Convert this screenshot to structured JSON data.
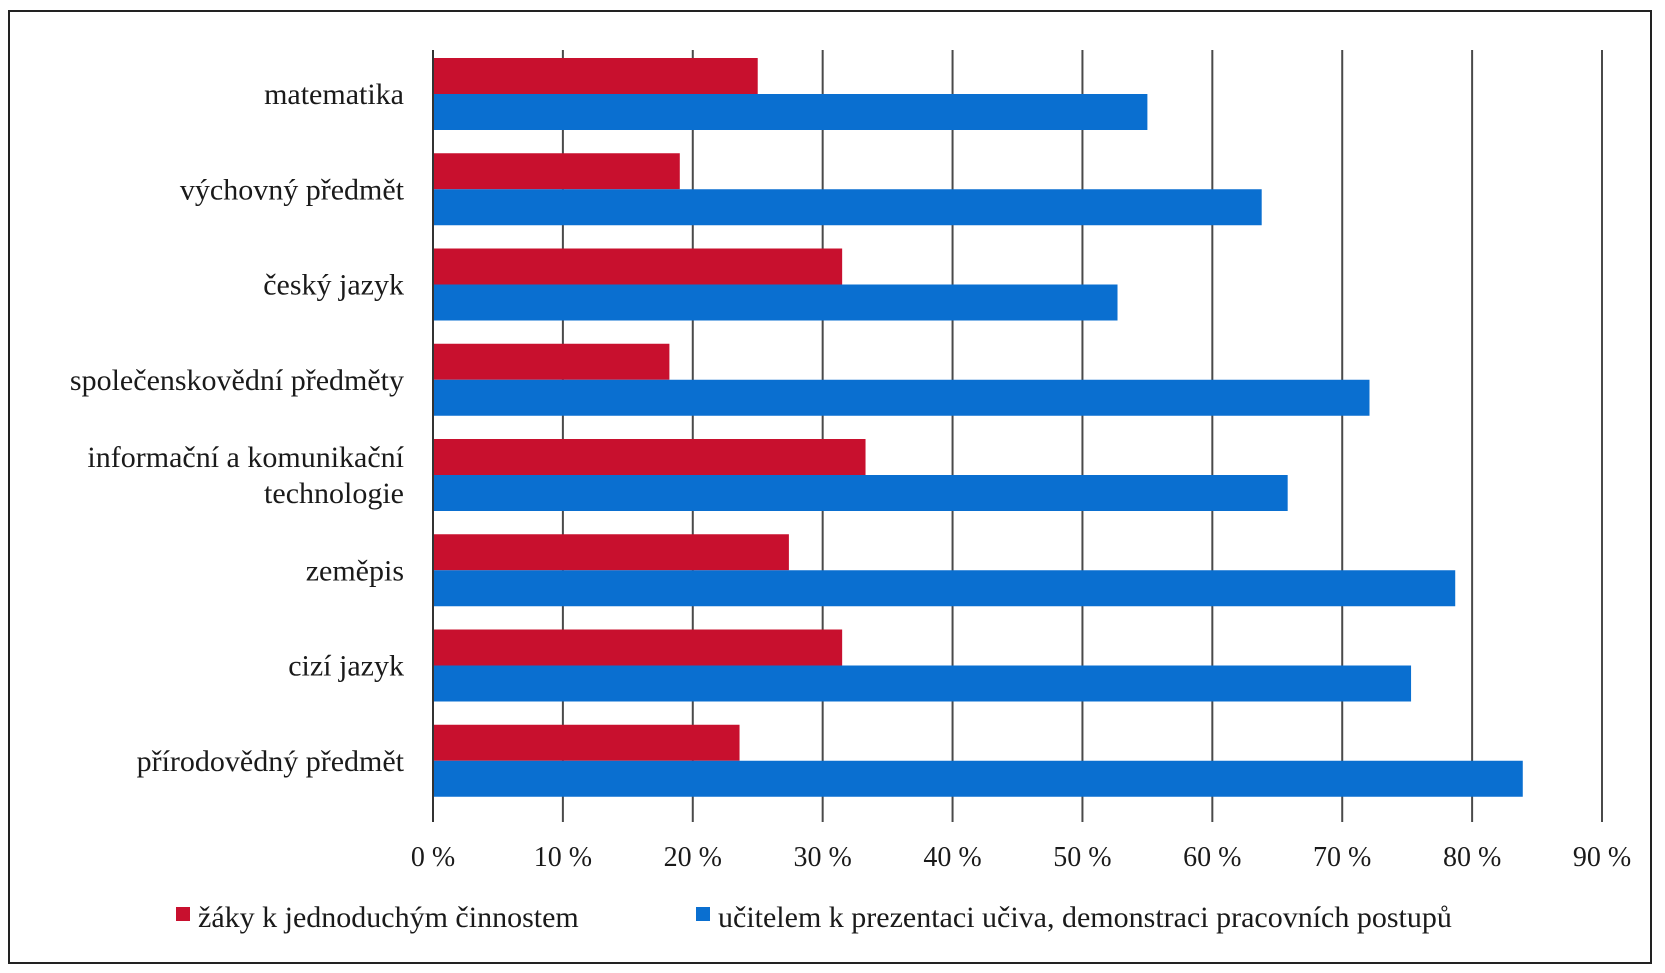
{
  "chart_data": {
    "type": "bar",
    "orientation": "horizontal",
    "categories": [
      "matematika",
      "výchovný předmět",
      "český jazyk",
      "společenskovědní předměty",
      [
        "informační a komunikační",
        "technologie"
      ],
      "zeměpis",
      "cizí jazyk",
      "přírodovědný předmět"
    ],
    "series": [
      {
        "name": "žáky k jednoduchým činnostem",
        "color": "#c8102e",
        "values": [
          25,
          19,
          31.5,
          18.2,
          33.3,
          27.4,
          31.5,
          23.6
        ]
      },
      {
        "name": "učitelem k prezentaci učiva, demonstraci pracovních postupů",
        "color": "#0a6fd0",
        "values": [
          55,
          63.8,
          52.7,
          72.1,
          65.8,
          78.7,
          75.3,
          83.9
        ]
      }
    ],
    "xlim": [
      0,
      90
    ],
    "ticks": [
      0,
      10,
      20,
      30,
      40,
      50,
      60,
      70,
      80,
      90
    ],
    "tick_labels": [
      "0 %",
      "10 %",
      "20 %",
      "30 %",
      "40 %",
      "50 %",
      "60 %",
      "70 %",
      "80 %",
      "90 %"
    ],
    "grid": true,
    "legend": "bottom",
    "title": "",
    "xlabel": "",
    "ylabel": ""
  }
}
